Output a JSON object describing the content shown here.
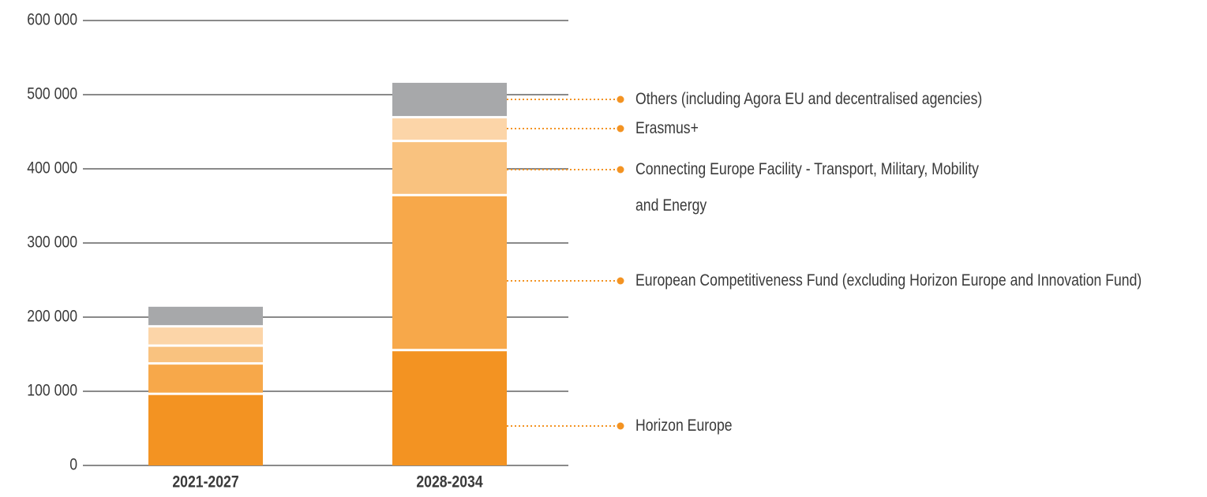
{
  "chart_data": {
    "type": "stacked_bar",
    "categories": [
      "2021-2027",
      "2028-2034"
    ],
    "series": [
      {
        "name": "Horizon Europe",
        "color": "#f39322",
        "values": [
          95000,
          154000
        ]
      },
      {
        "name": "European Competitiveness Fund (excluding Horizon Europe and Innovation Fund)",
        "color": "#f7a84a",
        "values": [
          41000,
          209000
        ]
      },
      {
        "name": "Connecting Europe Facility - Transport, Military, Mobility and Energy",
        "color": "#f9c27f",
        "values": [
          24000,
          73000
        ]
      },
      {
        "name": "Erasmus+",
        "color": "#fcd5a8",
        "values": [
          26000,
          32000
        ]
      },
      {
        "name": "Others (including Agora EU and decentralised agencies)",
        "color": "#a7a8aa",
        "values": [
          28000,
          48000
        ]
      }
    ],
    "ylim": [
      0,
      600000
    ],
    "yticks": [
      0,
      {
        "value": 100000,
        "label": "100 000"
      },
      {
        "value": 200000,
        "label": "200 000"
      },
      {
        "value": 300000,
        "label": "300 000"
      },
      {
        "value": 400000,
        "label": "400 000"
      },
      {
        "value": 500000,
        "label": "500 000"
      },
      {
        "value": 600000,
        "label": "600 000"
      }
    ],
    "grid": true
  }
}
